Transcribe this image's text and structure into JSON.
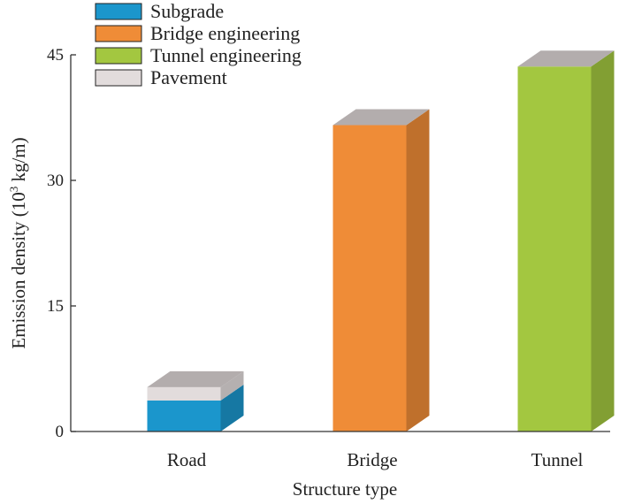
{
  "chart_data": {
    "type": "bar",
    "stacked": true,
    "three_d": true,
    "categories": [
      "Road",
      "Bridge",
      "Tunnel"
    ],
    "series": [
      {
        "name": "Subgrade",
        "values": [
          3.7,
          0,
          0
        ],
        "color": "#1b96cc"
      },
      {
        "name": "Bridge engineering",
        "values": [
          0,
          36.6,
          0
        ],
        "color": "#ef8c37"
      },
      {
        "name": "Tunnel engineering",
        "values": [
          0,
          0,
          43.6
        ],
        "color": "#a3c740"
      },
      {
        "name": "Pavement",
        "values": [
          1.6,
          0,
          0
        ],
        "color": "#e2dcdc"
      }
    ],
    "xlabel": "Structure type",
    "ylabel_prefix": "Emission density (10",
    "ylabel_sup": "3",
    "ylabel_suffix": " kg/m)",
    "ylim": [
      0,
      45
    ],
    "yticks": [
      "0",
      "15",
      "30",
      "45"
    ],
    "legend_position": "top-left",
    "top_face_color": "#b3adad",
    "grid": false
  }
}
